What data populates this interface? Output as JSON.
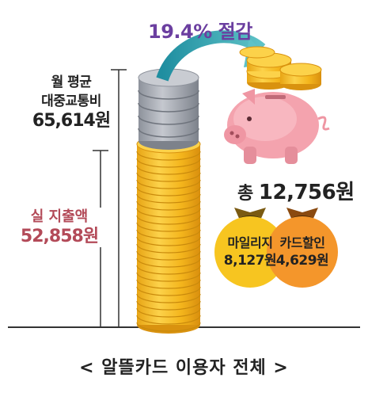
{
  "title": "19.4% 절감",
  "average": {
    "line1": "월 평균",
    "line2": "대중교통비",
    "amount": "65,614원"
  },
  "actual": {
    "label": "실 지출액",
    "amount": "52,858원"
  },
  "total": {
    "prefix": "총 ",
    "amount": "12,756원"
  },
  "mileage": {
    "label": "마일리지",
    "amount": "8,127원",
    "color": "#f7c520"
  },
  "card_discount": {
    "label": "카드할인",
    "amount": "4,629원",
    "color": "#f4962b"
  },
  "caption": "< 알뜰카드 이용자 전체 >",
  "colors": {
    "gold": "#f5b91e",
    "gold_dark": "#d9920f",
    "silver": "#9ea3ad",
    "pig": "#f4a3ae",
    "arrow": "#3aa7b5",
    "title": "#6b3fa0",
    "actual": "#b34a58"
  }
}
